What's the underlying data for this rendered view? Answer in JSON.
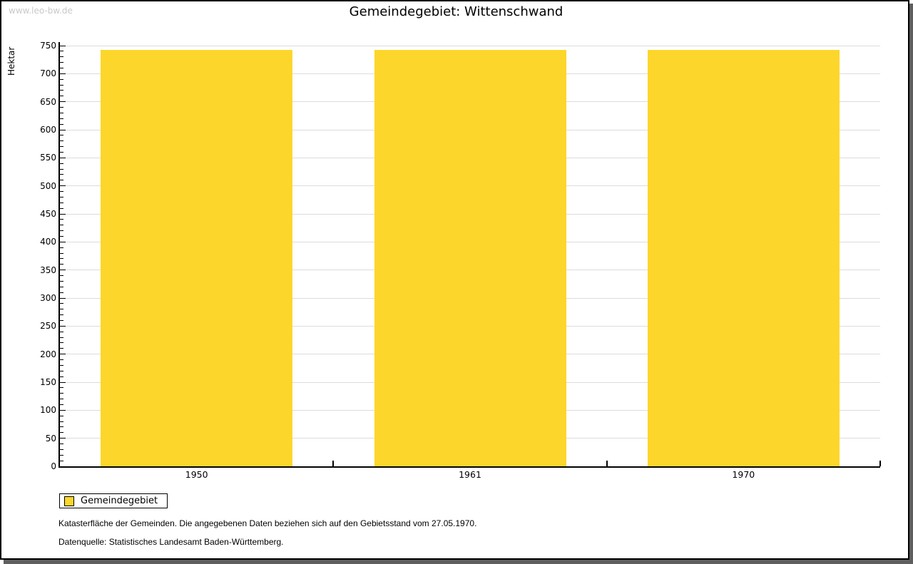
{
  "watermark": "www.leo-bw.de",
  "title": "Gemeindegebiet: Wittenschwand",
  "chart_data": {
    "type": "bar",
    "title": "Gemeindegebiet: Wittenschwand",
    "categories": [
      "1950",
      "1961",
      "1970"
    ],
    "series": [
      {
        "name": "Gemeindegebiet",
        "values": [
          743,
          743,
          743
        ]
      }
    ],
    "xlabel": "",
    "ylabel": "Hektar",
    "ylim": [
      0,
      750
    ],
    "ytick_major": 50,
    "ytick_minor": 10,
    "grid": "horizontal-major",
    "legend_position": "bottom-left"
  },
  "legend": {
    "items": [
      {
        "label": "Gemeindegebiet",
        "color": "#fdd62b"
      }
    ]
  },
  "footer": {
    "line1": "Katasterfläche der Gemeinden. Die angegebenen Daten beziehen sich auf den Gebietsstand vom 27.05.1970.",
    "line2": "Datenquelle: Statistisches Landesamt Baden-Württemberg."
  },
  "colors": {
    "bar": "#fdd62b",
    "grid": "#dcdcdc",
    "axis": "#000000",
    "watermark_text": "#c9c9c9",
    "frame_shadow": "#5f5f5f",
    "background": "#ffffff"
  }
}
